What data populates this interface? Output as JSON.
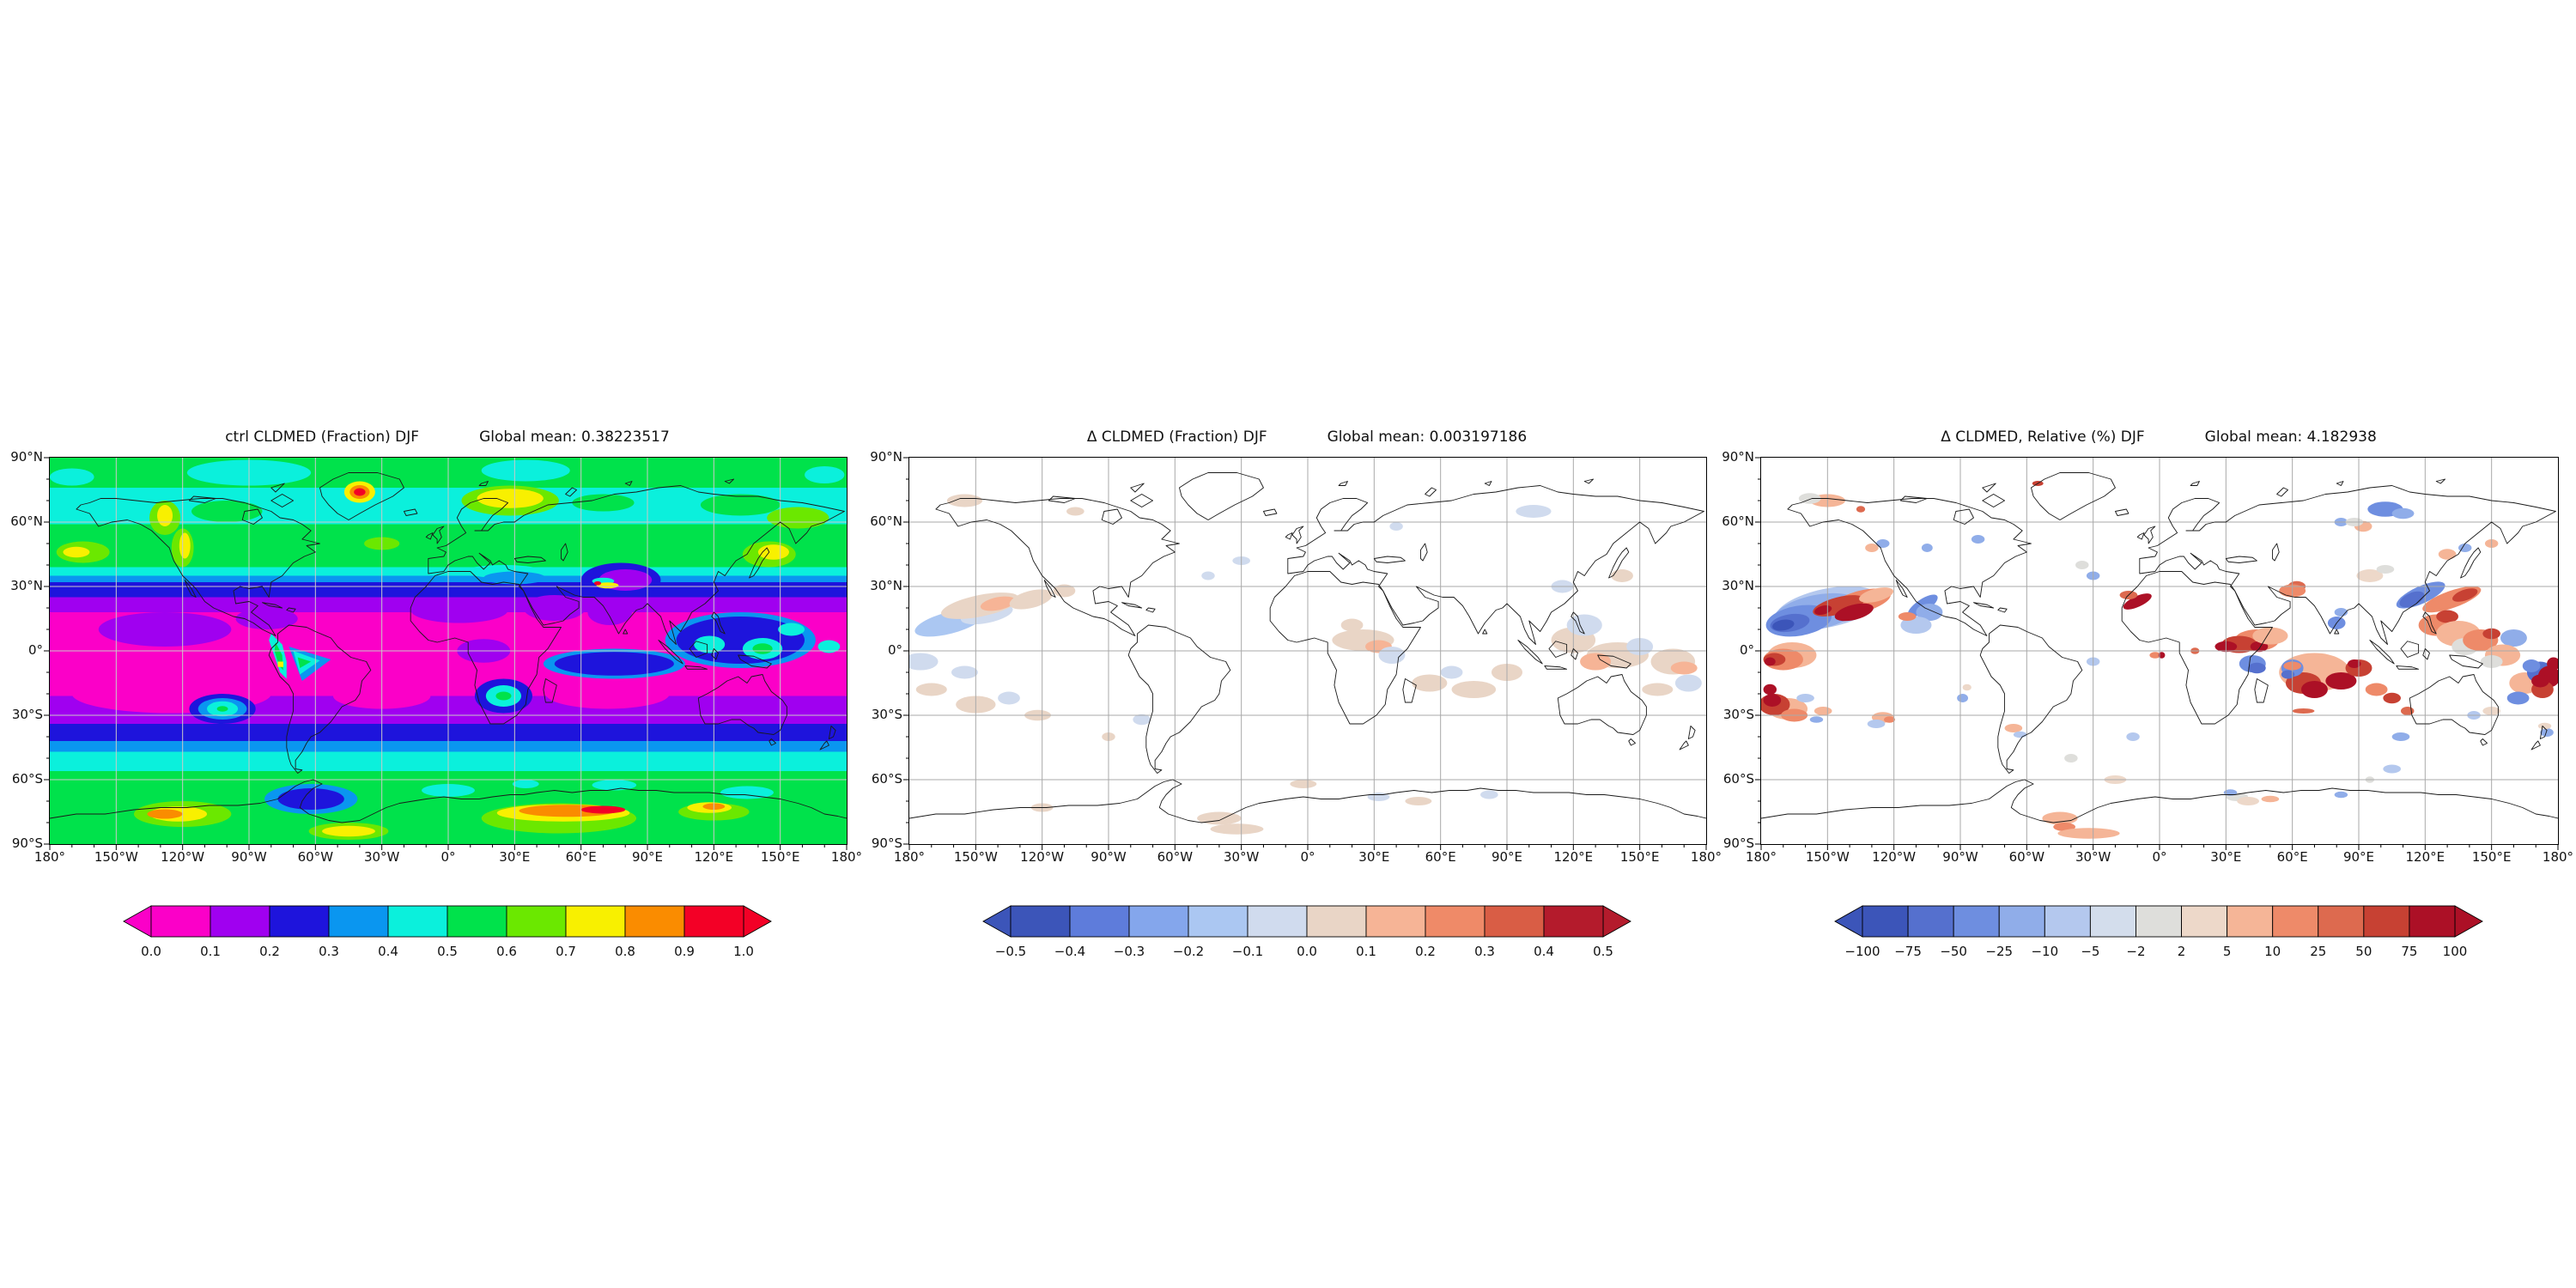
{
  "figure": {
    "background": "#ffffff",
    "season": "DJF",
    "variable": "CLDMED"
  },
  "axes": {
    "xticklabels": [
      "180°",
      "150°W",
      "120°W",
      "90°W",
      "60°W",
      "30°W",
      "0°",
      "30°E",
      "60°E",
      "90°E",
      "120°E",
      "150°E",
      "180°"
    ],
    "yticklabels": [
      "90°N",
      "60°N",
      "30°N",
      "0°",
      "30°S",
      "60°S",
      "90°S"
    ]
  },
  "panels": [
    {
      "id": "ctrl",
      "title": "ctrl CLDMED (Fraction) DJF",
      "global_mean_label": "Global mean: 0.38223517",
      "colorbar": {
        "labels": [
          "0.0",
          "0.1",
          "0.2",
          "0.3",
          "0.4",
          "0.5",
          "0.6",
          "0.7",
          "0.8",
          "0.9",
          "1.0"
        ],
        "colors": [
          "#FB00C8",
          "#A000F0",
          "#1E14DC",
          "#0A96F0",
          "#0BF0DC",
          "#00E24B",
          "#6BE800",
          "#F8F000",
          "#FA8C00",
          "#F30026"
        ]
      }
    },
    {
      "id": "delta",
      "title": "Δ CLDMED (Fraction) DJF",
      "global_mean_label": "Global mean: 0.003197186",
      "colorbar": {
        "labels": [
          "−0.5",
          "−0.4",
          "−0.3",
          "−0.2",
          "−0.1",
          "0.0",
          "0.1",
          "0.2",
          "0.3",
          "0.4",
          "0.5"
        ],
        "colors": [
          "#3C55B9",
          "#5E7CDB",
          "#84A6EC",
          "#ABC7F2",
          "#D0DBEE",
          "#E9D5C6",
          "#F6B496",
          "#EF8A68",
          "#D95D45",
          "#B41B2C"
        ]
      }
    },
    {
      "id": "relative",
      "title": "Δ CLDMED, Relative (%) DJF",
      "global_mean_label": "Global mean: 4.182938",
      "colorbar": {
        "labels": [
          "−100",
          "−75",
          "−50",
          "−25",
          "−10",
          "−5",
          "−2",
          "2",
          "5",
          "10",
          "25",
          "50",
          "75",
          "100"
        ],
        "colors": [
          "#3C55B9",
          "#5570CE",
          "#6E8EE0",
          "#90ADE9",
          "#B4C8EE",
          "#D3DDEC",
          "#DEDEDB",
          "#EDD8C9",
          "#F5B597",
          "#EE8A69",
          "#DD6A4F",
          "#C74133",
          "#AC1026"
        ]
      }
    }
  ],
  "chart_data": [
    {
      "type": "heatmap",
      "title": "ctrl CLDMED (Fraction) DJF",
      "global_mean": 0.38223517,
      "units": "Fraction",
      "levels": [
        0.0,
        0.1,
        0.2,
        0.3,
        0.4,
        0.5,
        0.6,
        0.7,
        0.8,
        0.9,
        1.0
      ],
      "xlim": [
        -180,
        180
      ],
      "ylim": [
        -90,
        90
      ],
      "xticks_deg": [
        -180,
        -150,
        -120,
        -90,
        -60,
        -30,
        0,
        30,
        60,
        90,
        120,
        150,
        180
      ],
      "yticks_deg": [
        90,
        60,
        30,
        0,
        -30,
        -60,
        -90
      ],
      "grid": true,
      "legend_position": "bottom-colorbar",
      "notes": "global lat-lon filled contour map; low values (magenta/purple) in subtropics, mid values (blue/cyan) in transition zones, high values (green/yellow/orange/red) at high latitudes, Greenland and Antarctic coast maxima"
    },
    {
      "type": "heatmap",
      "title": "Δ CLDMED (Fraction) DJF",
      "global_mean": 0.003197186,
      "units": "Fraction",
      "levels": [
        -0.5,
        -0.4,
        -0.3,
        -0.2,
        -0.1,
        0.0,
        0.1,
        0.2,
        0.3,
        0.4,
        0.5
      ],
      "xlim": [
        -180,
        180
      ],
      "ylim": [
        -90,
        90
      ],
      "xticks_deg": [
        -180,
        -150,
        -120,
        -90,
        -60,
        -30,
        0,
        30,
        60,
        90,
        120,
        150,
        180
      ],
      "yticks_deg": [
        90,
        60,
        30,
        0,
        -30,
        -60,
        -90
      ],
      "grid": true,
      "legend_position": "bottom-colorbar",
      "notes": "difference map, mostly near zero (white) with weak positive (tan) and negative (light blue) patches in tropical Pacific, Maritime Continent, Indian Ocean and Africa"
    },
    {
      "type": "heatmap",
      "title": "Δ CLDMED, Relative (%) DJF",
      "global_mean": 4.182938,
      "units": "%",
      "levels": [
        -100,
        -75,
        -50,
        -25,
        -10,
        -5,
        -2,
        2,
        5,
        10,
        25,
        50,
        75,
        100
      ],
      "xlim": [
        -180,
        180
      ],
      "ylim": [
        -90,
        90
      ],
      "xticks_deg": [
        -180,
        -150,
        -120,
        -90,
        -60,
        -30,
        0,
        30,
        60,
        90,
        120,
        150,
        180
      ],
      "yticks_deg": [
        90,
        60,
        30,
        0,
        -30,
        -60,
        -90
      ],
      "grid": true,
      "legend_position": "bottom-colorbar",
      "notes": "relative difference map with strong dipole (blue/dark red) in NE tropical Pacific, dark red patches in Indian Ocean, East Africa, West Sahara, Maritime Continent and SW Pacific"
    }
  ]
}
